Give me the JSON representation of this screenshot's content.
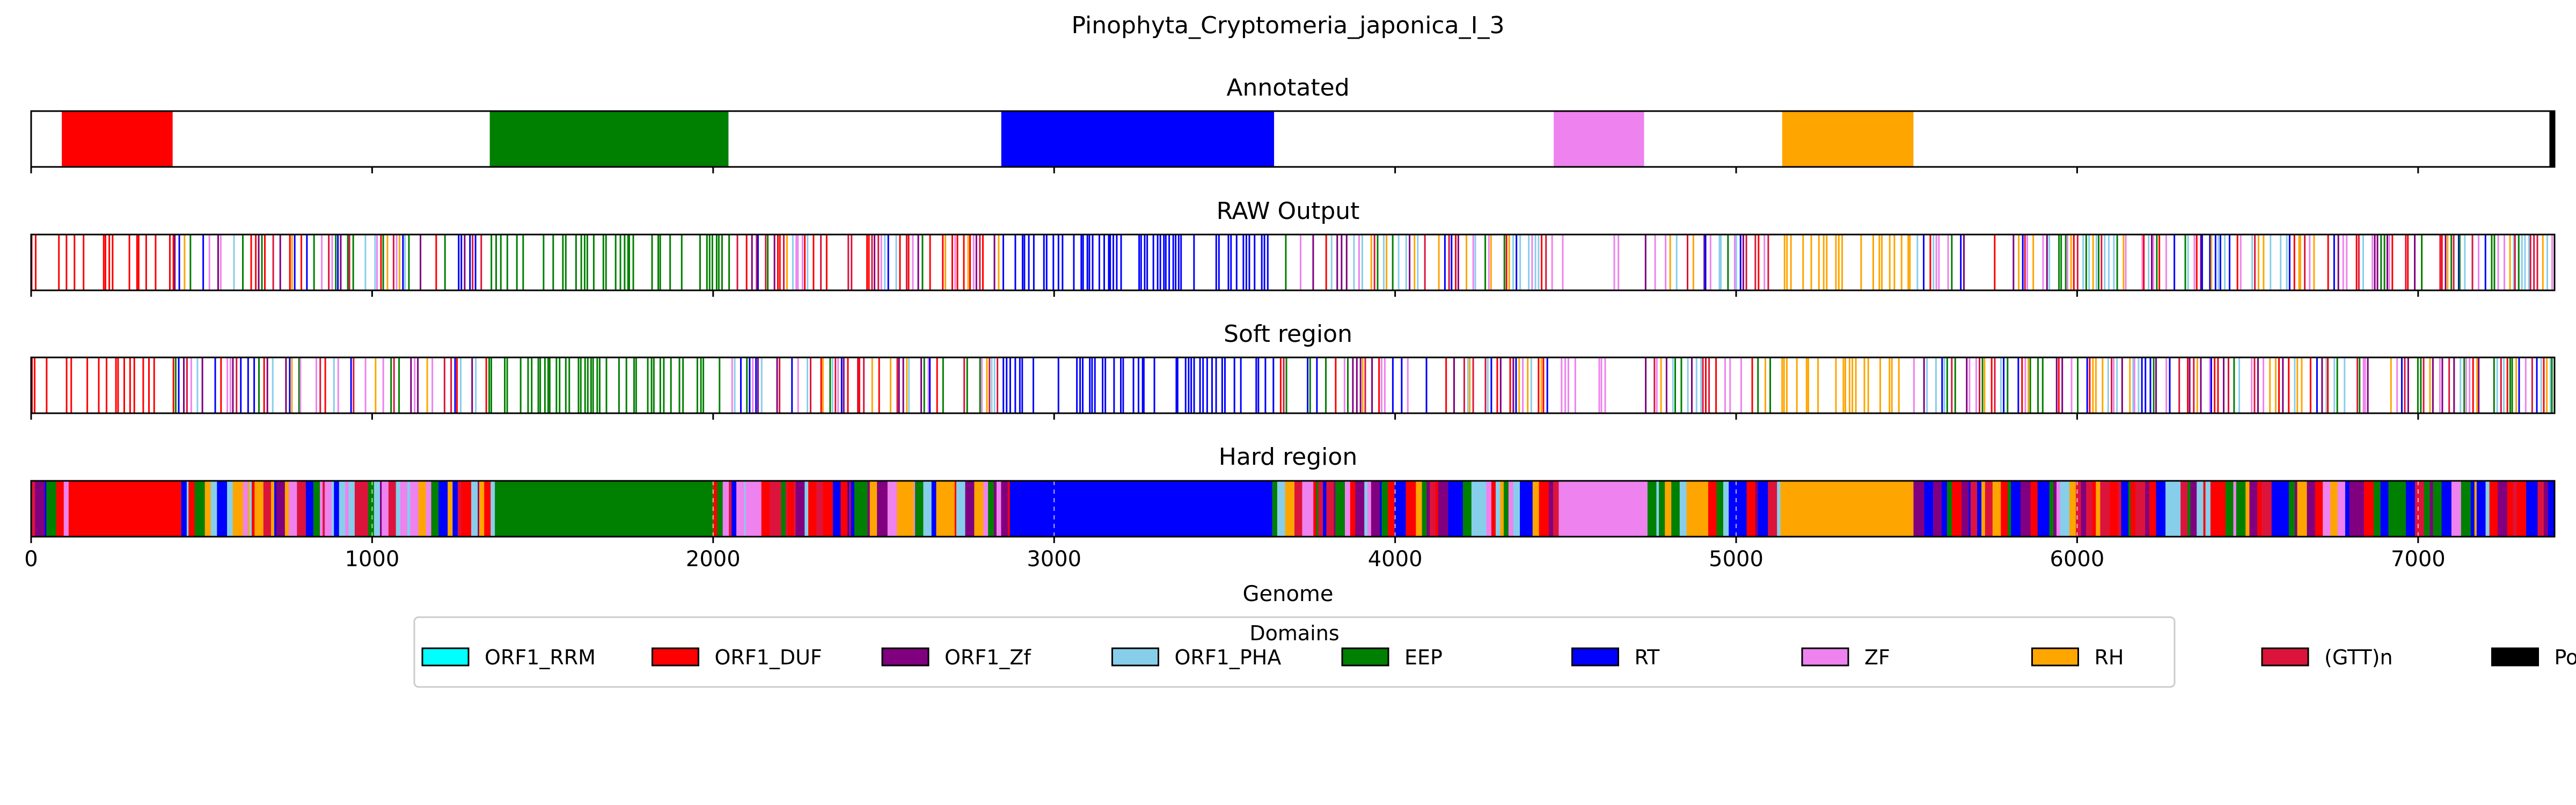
{
  "chart_data": {
    "type": "genome-track",
    "title": "Pinophyta_Cryptomeria_japonica_I_3",
    "xlabel": "Genome",
    "xlim": [
      0,
      7400
    ],
    "xticks": [
      0,
      1000,
      2000,
      3000,
      4000,
      5000,
      6000,
      7000
    ],
    "colors": {
      "ORF1_RRM": "#00ffff",
      "ORF1_DUF": "#ff0000",
      "ORF1_Zf": "#800080",
      "ORF1_PHA": "#87ceeb",
      "EEP": "#008000",
      "RT": "#0000ff",
      "ZF": "#ee82ee",
      "RH": "#ffa500",
      "(GTT)n": "#dc143c",
      "PoliA": "#000000"
    },
    "legend": {
      "title": "Domains",
      "placement": "bottom-center",
      "entries": [
        "ORF1_RRM",
        "ORF1_DUF",
        "ORF1_Zf",
        "ORF1_PHA",
        "EEP",
        "RT",
        "ZF",
        "RH",
        "(GTT)n",
        "PoliA"
      ]
    },
    "panels": [
      {
        "title": "Annotated",
        "style": "blocks",
        "segments": [
          {
            "domain": "ORF1_DUF",
            "start": 90,
            "end": 415
          },
          {
            "domain": "EEP",
            "start": 1345,
            "end": 2045
          },
          {
            "domain": "RT",
            "start": 2845,
            "end": 3645
          },
          {
            "domain": "ZF",
            "start": 4465,
            "end": 4730
          },
          {
            "domain": "RH",
            "start": 5135,
            "end": 5520
          },
          {
            "domain": "PoliA",
            "start": 7385,
            "end": 7400
          }
        ]
      },
      {
        "title": "RAW Output",
        "style": "lines",
        "regions": [
          {
            "domain": "ORF1_DUF",
            "start": 0,
            "end": 420,
            "density": 0.35
          },
          {
            "domain": "mixed",
            "start": 420,
            "end": 1340,
            "density": 0.55
          },
          {
            "domain": "EEP",
            "start": 1340,
            "end": 2050,
            "density": 0.45
          },
          {
            "domain": "mixed",
            "start": 2050,
            "end": 2840,
            "density": 0.55
          },
          {
            "domain": "RT",
            "start": 2840,
            "end": 3650,
            "density": 0.5
          },
          {
            "domain": "mixed",
            "start": 3650,
            "end": 4460,
            "density": 0.55
          },
          {
            "domain": "ZF",
            "start": 4460,
            "end": 4730,
            "density": 0.25
          },
          {
            "domain": "mixed",
            "start": 4730,
            "end": 5130,
            "density": 0.5
          },
          {
            "domain": "RH",
            "start": 5130,
            "end": 5520,
            "density": 0.45
          },
          {
            "domain": "mixed",
            "start": 5520,
            "end": 7400,
            "density": 0.6
          }
        ]
      },
      {
        "title": "Soft region",
        "style": "lines",
        "regions": [
          {
            "domain": "ORF1_DUF",
            "start": 0,
            "end": 420,
            "density": 0.35
          },
          {
            "domain": "mixed",
            "start": 420,
            "end": 1340,
            "density": 0.55
          },
          {
            "domain": "EEP",
            "start": 1340,
            "end": 2050,
            "density": 0.45
          },
          {
            "domain": "mixed",
            "start": 2050,
            "end": 2840,
            "density": 0.55
          },
          {
            "domain": "RT",
            "start": 2840,
            "end": 3650,
            "density": 0.5
          },
          {
            "domain": "mixed",
            "start": 3650,
            "end": 4460,
            "density": 0.55
          },
          {
            "domain": "ZF",
            "start": 4460,
            "end": 4730,
            "density": 0.25
          },
          {
            "domain": "mixed",
            "start": 4730,
            "end": 5130,
            "density": 0.5
          },
          {
            "domain": "RH",
            "start": 5130,
            "end": 5520,
            "density": 0.45
          },
          {
            "domain": "mixed",
            "start": 5520,
            "end": 7400,
            "density": 0.6
          }
        ]
      },
      {
        "title": "Hard region",
        "style": "filled",
        "regions": [
          {
            "domain": "mixed",
            "start": 0,
            "end": 110
          },
          {
            "domain": "ORF1_DUF",
            "start": 110,
            "end": 440
          },
          {
            "domain": "mixed",
            "start": 440,
            "end": 1360
          },
          {
            "domain": "EEP",
            "start": 1360,
            "end": 2000
          },
          {
            "domain": "mixed",
            "start": 2000,
            "end": 2870
          },
          {
            "domain": "RT",
            "start": 2870,
            "end": 3640
          },
          {
            "domain": "mixed",
            "start": 3640,
            "end": 4500
          },
          {
            "domain": "ZF",
            "start": 4500,
            "end": 4740
          },
          {
            "domain": "mixed",
            "start": 4740,
            "end": 5130
          },
          {
            "domain": "RH",
            "start": 5130,
            "end": 5520
          },
          {
            "domain": "mixed",
            "start": 5520,
            "end": 7400
          }
        ]
      }
    ]
  }
}
